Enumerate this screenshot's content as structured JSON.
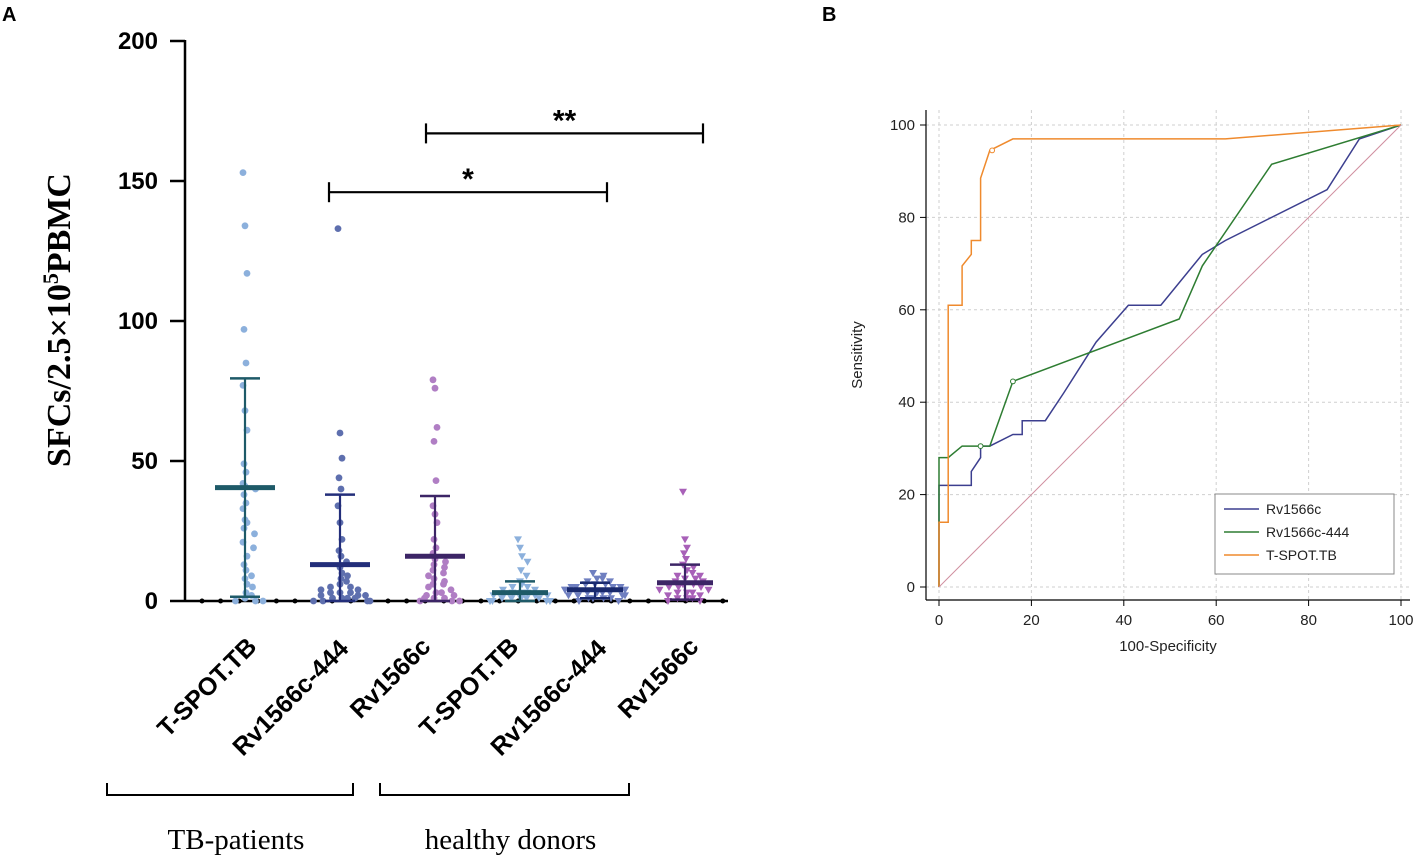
{
  "panel_a_letter": "A",
  "panel_b_letter": "B",
  "chart_data": [
    {
      "type": "scatter",
      "title": "",
      "ylabel": "SFCs/2.5×10⁵PBMC",
      "ylabel_parts": {
        "base": "SFCs/2.5×10",
        "sup": "5",
        "tail": "PBMC"
      },
      "ylim": [
        0,
        200
      ],
      "yticks": [
        "0",
        "50",
        "100",
        "150",
        "200"
      ],
      "categories": [
        "T-SPOT.TB",
        "Rv1566c-444",
        "Rv1566c",
        "T-SPOT.TB",
        "Rv1566c-444",
        "Rv1566c"
      ],
      "groups": [
        {
          "label": "TB-patients",
          "categories": [
            0,
            1,
            2
          ]
        },
        {
          "label": "healthy donors",
          "categories": [
            3,
            4,
            5
          ]
        }
      ],
      "significance": [
        {
          "label": "**",
          "from": 2,
          "to": 5,
          "y": 167
        },
        {
          "label": "*",
          "from": 1,
          "to": 4,
          "y": 146
        }
      ],
      "series": [
        {
          "name": "T-SPOT.TB",
          "group": "TB-patients",
          "color": "#8cb0dc",
          "marker": "circle",
          "mean": 40.5,
          "sd_low": 1.5,
          "sd_high": 79.5,
          "values": [
            153,
            134,
            117,
            97,
            85,
            77,
            68,
            61,
            49,
            46,
            42,
            41,
            40,
            38,
            35,
            33,
            29,
            28,
            26,
            24,
            21,
            19,
            16,
            13,
            11,
            9,
            8,
            6,
            5,
            3,
            2,
            1,
            0,
            0,
            0
          ]
        },
        {
          "name": "Rv1566c-444",
          "group": "TB-patients",
          "color": "#5e6fae",
          "marker": "circle",
          "mean": 13,
          "sd_low": 0,
          "sd_high": 38,
          "values": [
            133,
            60,
            51,
            44,
            40,
            34,
            28,
            22,
            18,
            16,
            14,
            12,
            10,
            9,
            8,
            7,
            6,
            5,
            5,
            4,
            4,
            3,
            3,
            3,
            2,
            2,
            2,
            1,
            1,
            1,
            1,
            0,
            0,
            0,
            0
          ]
        },
        {
          "name": "Rv1566c",
          "group": "TB-patients",
          "color": "#b07ec4",
          "marker": "circle",
          "mean": 16,
          "sd_low": 0,
          "sd_high": 37.5,
          "values": [
            79,
            76,
            62,
            57,
            43,
            34,
            31,
            28,
            22,
            19,
            17,
            15,
            14,
            13,
            12,
            11,
            10,
            9,
            8,
            7,
            6,
            6,
            5,
            4,
            3,
            3,
            2,
            2,
            1,
            1,
            1,
            0,
            0,
            0
          ]
        },
        {
          "name": "T-SPOT.TB",
          "group": "healthy donors",
          "color": "#8cb0dc",
          "marker": "triangle-down",
          "mean": 3,
          "sd_low": 0,
          "sd_high": 7,
          "values": [
            22,
            19,
            16,
            14,
            11,
            9,
            7,
            6,
            5,
            5,
            4,
            4,
            3,
            3,
            3,
            2,
            2,
            2,
            2,
            1,
            1,
            1,
            1,
            1,
            0,
            0,
            0,
            0,
            0,
            0
          ]
        },
        {
          "name": "Rv1566c-444",
          "group": "healthy donors",
          "color": "#6f7fc0",
          "marker": "triangle-down",
          "mean": 4,
          "sd_low": 1,
          "sd_high": 6.5,
          "values": [
            10,
            9,
            8,
            8,
            7,
            7,
            6,
            6,
            6,
            5,
            5,
            5,
            5,
            4,
            4,
            4,
            4,
            3,
            3,
            3,
            3,
            2,
            2,
            2,
            2,
            1,
            1,
            1,
            1,
            0,
            0
          ]
        },
        {
          "name": "Rv1566c",
          "group": "healthy donors",
          "color": "#a860b8",
          "marker": "triangle-down",
          "mean": 6.5,
          "sd_low": 0.5,
          "sd_high": 13,
          "values": [
            39,
            22,
            19,
            17,
            15,
            13,
            12,
            11,
            10,
            9,
            9,
            8,
            8,
            7,
            7,
            6,
            6,
            5,
            5,
            5,
            4,
            4,
            3,
            3,
            3,
            2,
            2,
            1,
            1,
            1,
            0,
            0
          ]
        }
      ],
      "mean_bar_colors": [
        "#1e5a68",
        "#232e7a",
        "#3c2566",
        "#1e5a68",
        "#1a2a6e",
        "#3c2566"
      ]
    },
    {
      "type": "line",
      "title": "",
      "xlabel": "100-Specificity",
      "ylabel": "Sensitivity",
      "xlim": [
        0,
        100
      ],
      "ylim": [
        0,
        100
      ],
      "xticks": [
        "0",
        "20",
        "40",
        "60",
        "80",
        "100"
      ],
      "yticks": [
        "0",
        "20",
        "40",
        "60",
        "80",
        "100"
      ],
      "grid": true,
      "legend_position": "bottom-right",
      "series": [
        {
          "name": "Rv1566c",
          "color": "#3c3f8f",
          "x": [
            0,
            0,
            2,
            7,
            7,
            9,
            9,
            11,
            16,
            16,
            18,
            18,
            23,
            27,
            34,
            41,
            48,
            57,
            62,
            84,
            91,
            100
          ],
          "y": [
            0,
            22,
            22,
            22,
            25,
            28,
            30.5,
            30.5,
            33,
            33,
            33,
            36,
            36,
            42,
            53,
            61,
            61,
            72,
            75,
            86,
            97,
            100
          ]
        },
        {
          "name": "Rv1566c-444",
          "color": "#2e7d32",
          "x": [
            0,
            0,
            2,
            2,
            5,
            9,
            11,
            16,
            52,
            57,
            72,
            100
          ],
          "y": [
            0,
            28,
            28,
            28,
            30.5,
            30.5,
            30.5,
            44.5,
            58,
            69.5,
            91.5,
            100
          ],
          "marker_at": [
            [
              16,
              44.5
            ],
            [
              9,
              30.5
            ]
          ]
        },
        {
          "name": "T-SPOT.TB",
          "color": "#ef8a2d",
          "x": [
            0,
            0,
            2,
            2,
            5,
            5,
            7,
            7,
            9,
            9,
            11,
            11,
            16,
            20,
            62,
            100
          ],
          "y": [
            0,
            14,
            14,
            61,
            61,
            69.5,
            72,
            75,
            75,
            88.5,
            94.5,
            94.5,
            97,
            97,
            97,
            100
          ],
          "marker_at": [
            [
              11.5,
              94.5
            ]
          ]
        },
        {
          "name": "reference",
          "color": "#d08fa0",
          "x": [
            0,
            100
          ],
          "y": [
            0,
            100
          ],
          "in_legend": false
        }
      ]
    }
  ]
}
